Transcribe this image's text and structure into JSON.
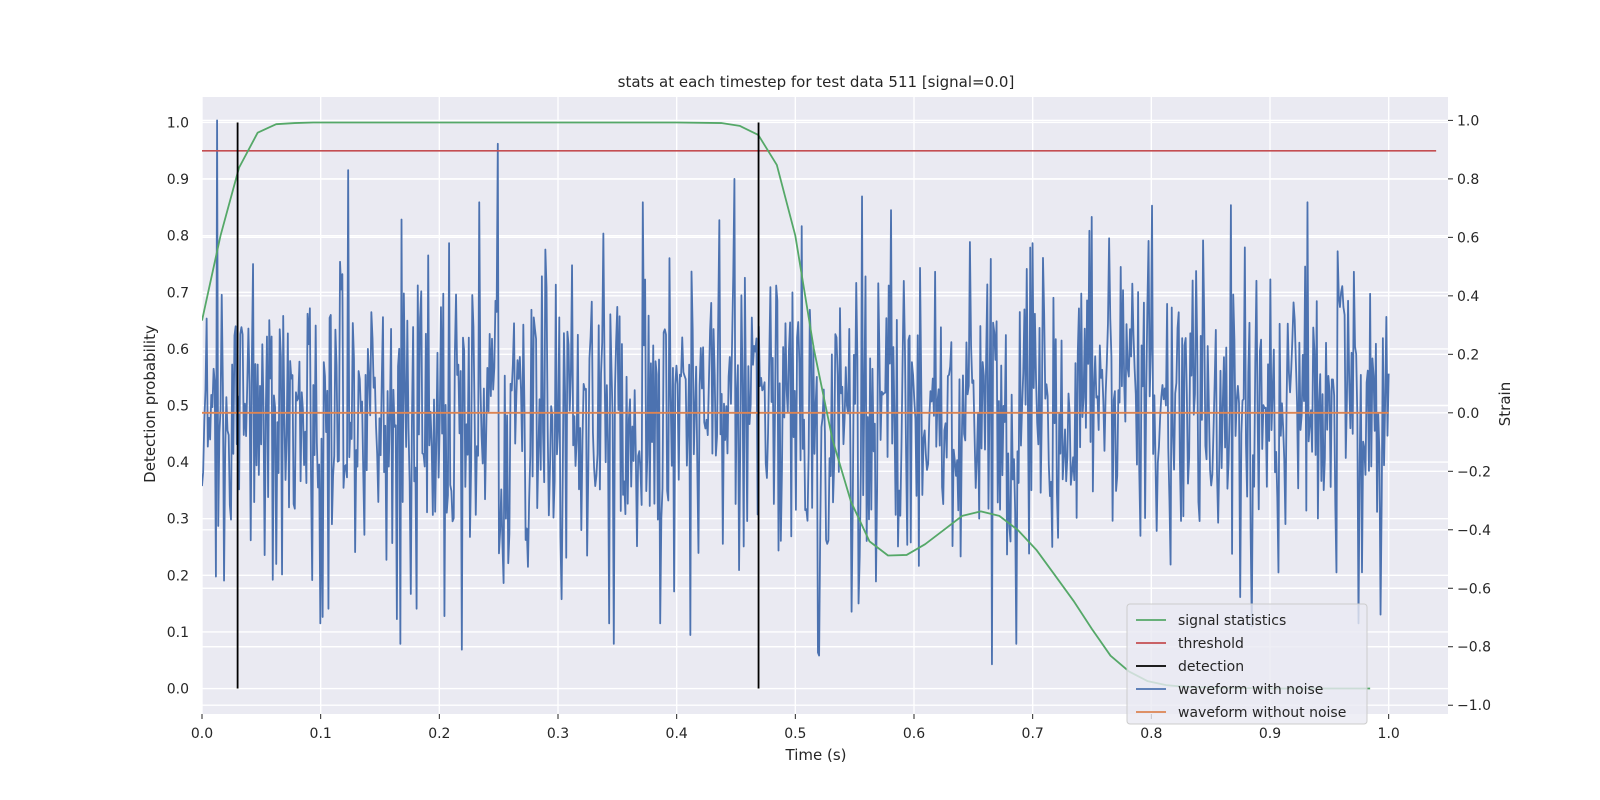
{
  "chart_data": {
    "type": "line",
    "title": "stats at each timestep for test data 511 [signal=0.0]",
    "xlabel": "Time (s)",
    "ylabel": "Detection probability",
    "ylabel_right": "Strain",
    "xlim": [
      0.0,
      1.05
    ],
    "ylim": [
      -0.045,
      1.045
    ],
    "ylim_right": [
      -1.03,
      1.08
    ],
    "xticks": [
      "0.0",
      "0.1",
      "0.2",
      "0.3",
      "0.4",
      "0.5",
      "0.6",
      "0.7",
      "0.8",
      "0.9",
      "1.0"
    ],
    "yticks": [
      "0.0",
      "0.1",
      "0.2",
      "0.3",
      "0.4",
      "0.5",
      "0.6",
      "0.7",
      "0.8",
      "0.9",
      "1.0"
    ],
    "yticks_right": [
      "−1.0",
      "−0.8",
      "−0.6",
      "−0.4",
      "−0.2",
      "0.0",
      "0.2",
      "0.4",
      "0.6",
      "0.8",
      "1.0"
    ],
    "grid": true,
    "legend_position": "lower-right",
    "colors": {
      "background": "#eaeaf2",
      "grid": "#ffffff",
      "signal": "#55a868",
      "threshold": "#c44e52",
      "detection": "#000000",
      "noisy": "#4c72b0",
      "clean": "#dd8452"
    },
    "series": [
      {
        "name": "signal statistics",
        "axis": "left",
        "x": [
          0.0,
          0.0156,
          0.0312,
          0.0469,
          0.0625,
          0.0781,
          0.0938,
          0.1,
          0.2,
          0.3,
          0.4,
          0.4375,
          0.4531,
          0.4688,
          0.4844,
          0.5,
          0.5156,
          0.5313,
          0.5469,
          0.5625,
          0.5781,
          0.5938,
          0.6094,
          0.625,
          0.6406,
          0.6563,
          0.6719,
          0.6875,
          0.7031,
          0.7188,
          0.7344,
          0.75,
          0.7656,
          0.7813,
          0.7969,
          0.8125,
          0.8281,
          0.8438,
          0.9,
          0.95,
          0.9844
        ],
        "y": [
          0.65,
          0.8,
          0.92,
          0.982,
          0.997,
          0.999,
          1.0,
          1.0,
          1.0,
          1.0,
          1.0,
          0.999,
          0.994,
          0.978,
          0.925,
          0.8,
          0.6,
          0.44,
          0.33,
          0.26,
          0.235,
          0.236,
          0.255,
          0.28,
          0.305,
          0.313,
          0.305,
          0.28,
          0.245,
          0.2,
          0.155,
          0.105,
          0.058,
          0.03,
          0.013,
          0.006,
          0.003,
          0.002,
          0.0,
          0.0,
          0.0
        ]
      },
      {
        "name": "threshold",
        "axis": "left",
        "x": [
          0.0,
          1.04
        ],
        "y": [
          0.95,
          0.95
        ]
      },
      {
        "name": "detection",
        "axis": "left",
        "segments": [
          {
            "x": 0.03,
            "y": [
              0.0,
              1.0
            ]
          },
          {
            "x": 0.469,
            "y": [
              0.0,
              1.0
            ]
          }
        ]
      },
      {
        "name": "waveform with noise",
        "axis": "right",
        "x_range": [
          0.0,
          1.0
        ],
        "n_points": 1024,
        "seed": 511,
        "std": 0.28,
        "anchors": [
          {
            "x": 0.013,
            "y": 1.0
          },
          {
            "x": 0.0117,
            "y": -0.56
          },
          {
            "x": 0.123,
            "y": 0.83
          },
          {
            "x": 0.107,
            "y": -0.67
          },
          {
            "x": 0.167,
            "y": -0.79
          },
          {
            "x": 0.181,
            "y": -0.67
          },
          {
            "x": 0.219,
            "y": -0.81
          },
          {
            "x": 0.249,
            "y": 0.92
          },
          {
            "x": 0.347,
            "y": -0.79
          },
          {
            "x": 0.412,
            "y": -0.76
          },
          {
            "x": 0.449,
            "y": 0.8
          },
          {
            "x": 0.519,
            "y": -0.82
          },
          {
            "x": 0.52,
            "y": -0.83
          },
          {
            "x": 0.556,
            "y": 0.74
          },
          {
            "x": 0.666,
            "y": -0.86
          },
          {
            "x": 0.686,
            "y": -0.79
          },
          {
            "x": 0.7,
            "y": 0.58
          },
          {
            "x": 0.75,
            "y": 0.67
          },
          {
            "x": 0.867,
            "y": 0.71
          },
          {
            "x": 0.885,
            "y": -0.73
          },
          {
            "x": 0.993,
            "y": -0.69
          }
        ]
      },
      {
        "name": "waveform without noise",
        "axis": "right",
        "x": [
          0.0,
          1.0
        ],
        "y": [
          0.0,
          0.0
        ]
      }
    ]
  }
}
